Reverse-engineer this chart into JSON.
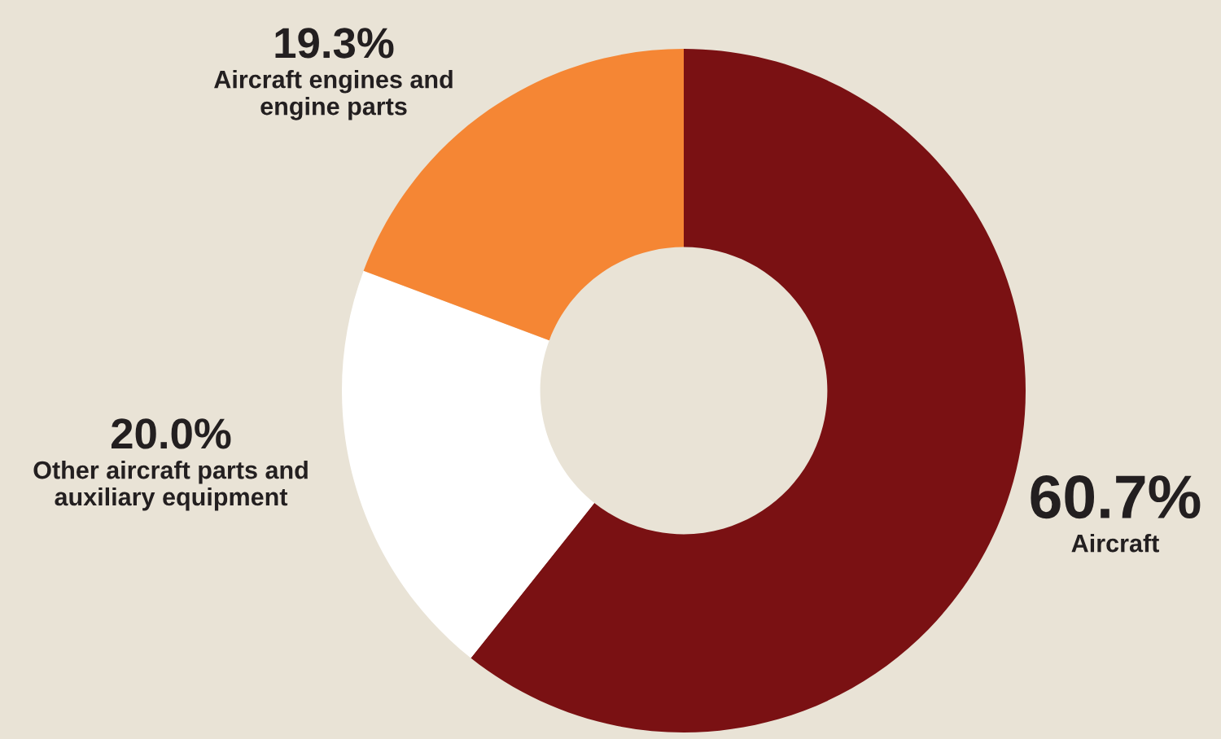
{
  "chart_data": {
    "type": "donut",
    "categories": [
      "Aircraft",
      "Other aircraft parts and\nauxiliary equipment",
      "Aircraft engines and\nengine parts"
    ],
    "values": [
      60.7,
      20.0,
      19.3
    ],
    "colors": [
      "#7a1113",
      "#ffffff",
      "#f58634"
    ],
    "value_labels": [
      "60.7%",
      "20.0%",
      "19.3%"
    ]
  }
}
